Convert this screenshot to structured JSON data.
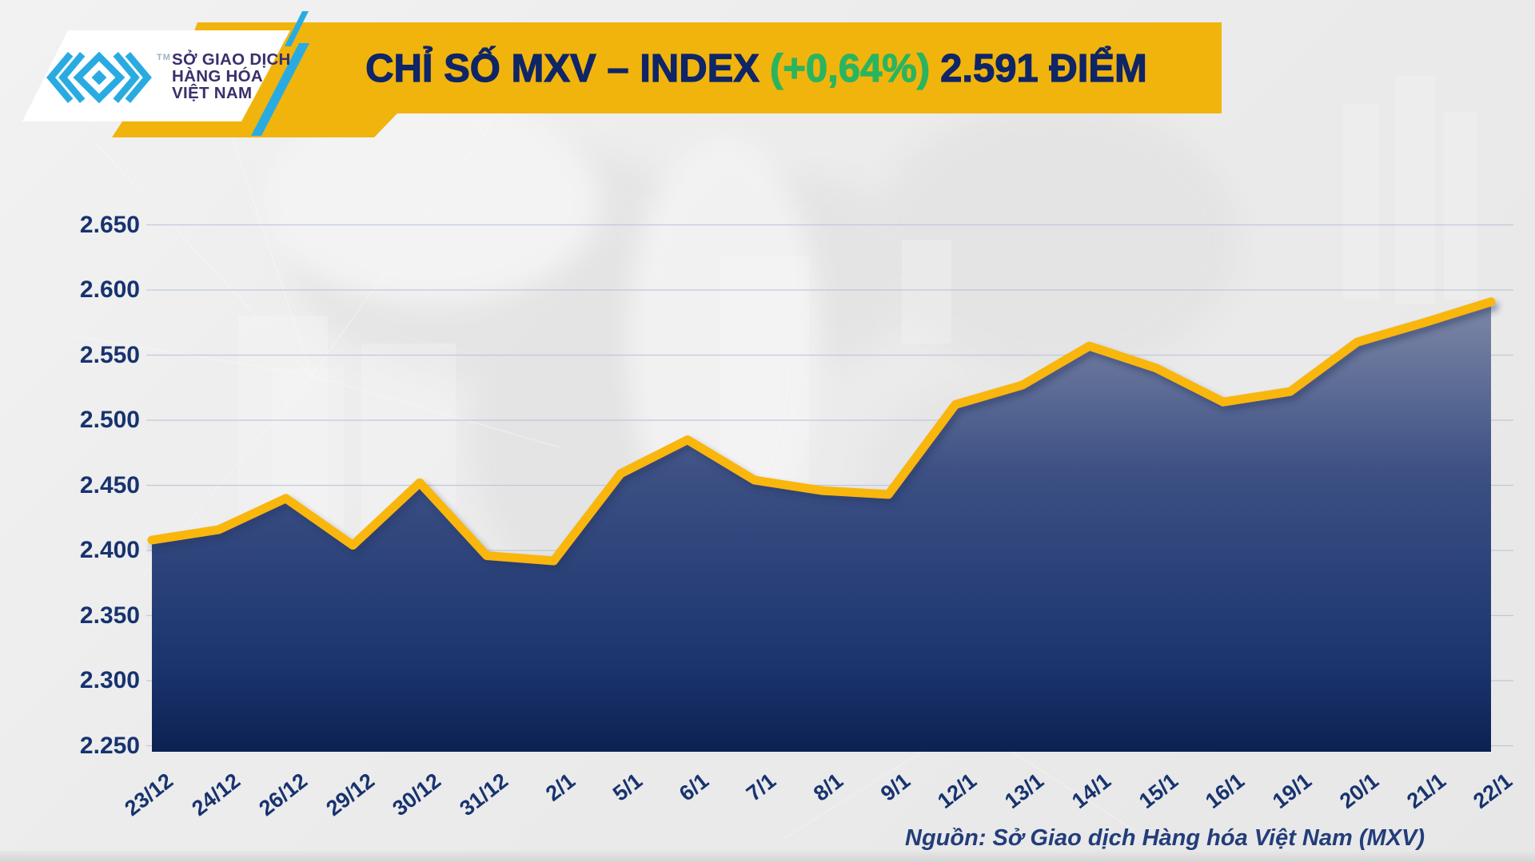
{
  "header": {
    "logo": {
      "company_lines": [
        "SỞ GIAO DỊCH",
        "HÀNG HÓA",
        "VIỆT NAM"
      ],
      "trademark": "TM"
    },
    "title_prefix": "CHỈ SỐ MXV – INDEX",
    "title_change": "(+0,64%)",
    "title_value": "2.591 ĐIỂM"
  },
  "source_note": "Nguồn: Sở Giao dịch Hàng hóa Việt Nam (MXV)",
  "colors": {
    "banner_yellow": "#F1B40D",
    "line_yellow": "#F9B60A",
    "title_navy": "#0F2566",
    "axis_navy": "#17336F",
    "change_green": "#2AB45F",
    "logo_cyan": "#29ABE2",
    "grid_line": "#B9C3D6",
    "area_fill_top": "#7E88A7",
    "area_fill_mid": "#3C5084",
    "area_fill_bottom": "#0D2152",
    "background": "#ECECEC"
  },
  "chart_data": {
    "type": "area",
    "title": "CHỈ SỐ MXV – INDEX (+0,64%) 2.591 ĐIỂM",
    "unit": "điểm",
    "categories": [
      "23/12",
      "24/12",
      "26/12",
      "29/12",
      "30/12",
      "31/12",
      "2/1",
      "5/1",
      "6/1",
      "7/1",
      "8/1",
      "9/1",
      "12/1",
      "13/1",
      "14/1",
      "15/1",
      "16/1",
      "19/1",
      "20/1",
      "21/1",
      "22/1"
    ],
    "values": [
      2408,
      2416,
      2440,
      2404,
      2452,
      2396,
      2392,
      2459,
      2485,
      2454,
      2446,
      2443,
      2512,
      2527,
      2557,
      2540,
      2514,
      2522,
      2560,
      2575,
      2591
    ],
    "last_value_display": "2.591",
    "change_percent_display": "+0,64%",
    "ylim": [
      2250,
      2650
    ],
    "ytick_step": 50,
    "ytick_labels": [
      "2.250",
      "2.300",
      "2.350",
      "2.400",
      "2.450",
      "2.500",
      "2.550",
      "2.600",
      "2.650"
    ],
    "grid": true,
    "legend": false,
    "line_color": "#F9B60A",
    "fill_gradient": [
      "#7E88A7",
      "#3C5084",
      "#0D2152"
    ]
  }
}
